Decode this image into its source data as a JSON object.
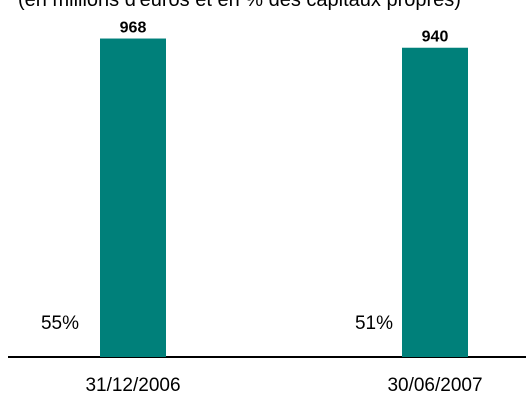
{
  "chart_data": {
    "type": "bar",
    "subtitle": "(en millions d'euros et en % des capitaux propres)",
    "categories": [
      "31/12/2006",
      "30/06/2007"
    ],
    "values": [
      968,
      940
    ],
    "percent_labels": [
      "55%",
      "51%"
    ],
    "bar_color": "#00807a",
    "ylim": [
      0,
      1000
    ],
    "grid": false,
    "legend": "none"
  }
}
